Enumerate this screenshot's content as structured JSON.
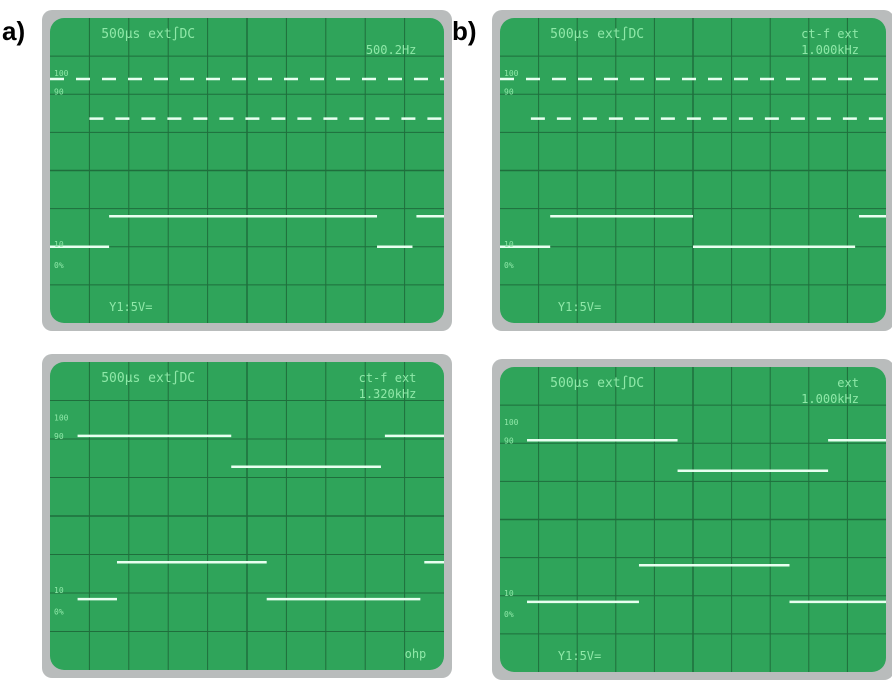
{
  "labels": [
    "a)",
    "b)"
  ],
  "panels": [
    {
      "timebase": "500µs ext∫DC",
      "freq": "500.2Hz",
      "volts": "Y1:5V="
    },
    {
      "timebase": "500µs ext∫DC",
      "trigger": "ct-f ext",
      "freq": "1.000kHz",
      "volts": "Y1:5V="
    },
    {
      "timebase": "500µs ext∫DC",
      "trigger": "ct-f ext",
      "freq": "1.320kHz",
      "note": "ohp"
    },
    {
      "timebase": "500µs ext∫DC",
      "trigger": "ext",
      "freq": "1.000kHz",
      "volts": "Y1:5V="
    }
  ],
  "scale_marks": [
    "100",
    "90",
    "10",
    "0%"
  ]
}
